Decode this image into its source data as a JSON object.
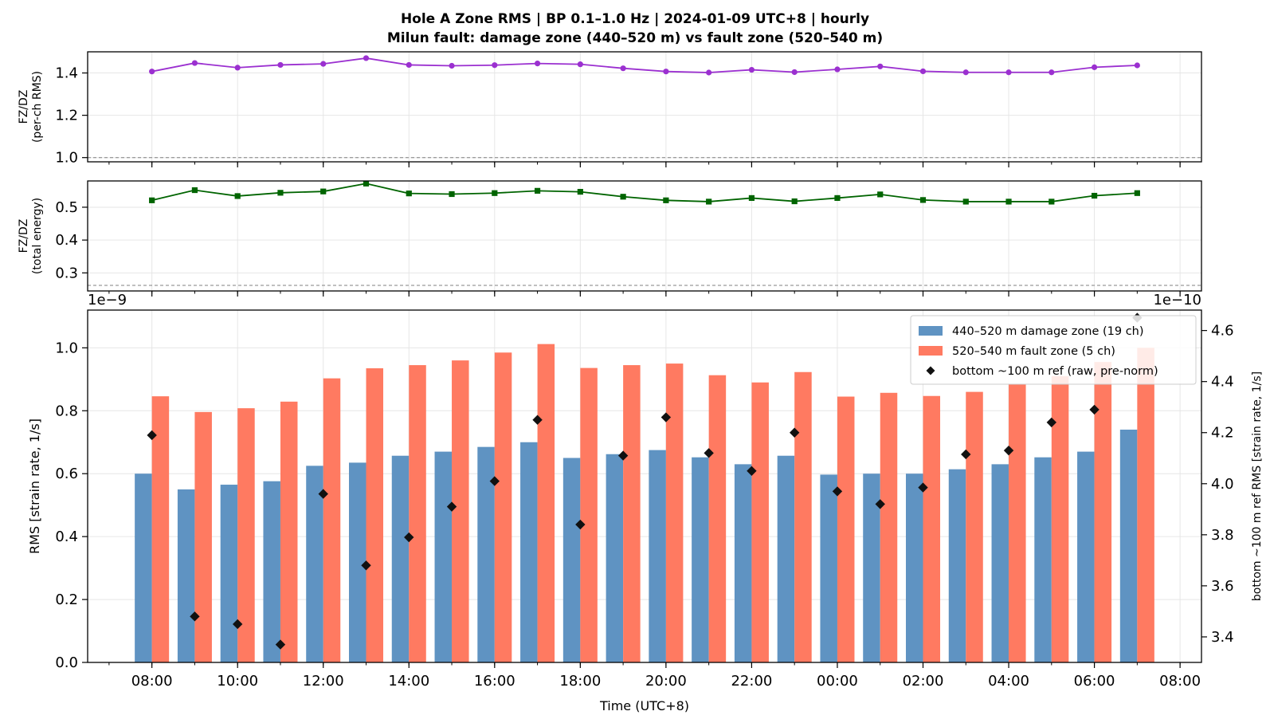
{
  "title_line1": "Hole A Zone RMS  |  BP 0.1–1.0 Hz  |  2024-01-09 UTC+8  |  hourly",
  "title_line2": "Milun fault: damage zone (440–520 m) vs fault zone (520–540 m)",
  "colors": {
    "ratio_rms": "#9b30d0",
    "ratio_energy": "#006400",
    "damage_zone": "#5f93c2",
    "fault_zone": "#ff7a61",
    "ref": "#111111",
    "baseline": "#808080"
  },
  "chart_data": [
    {
      "type": "line",
      "ylabel": "FZ/DZ\n(per-ch RMS)",
      "ylim": [
        0.98,
        1.5
      ],
      "yticks": [
        "1.0",
        "1.2",
        "1.4"
      ],
      "ytick_values": [
        1.0,
        1.2,
        1.4
      ],
      "baseline": 1.0,
      "grid": true,
      "marker": "circle",
      "x_hours": [
        0,
        1,
        2,
        3,
        4,
        5,
        6,
        7,
        8,
        9,
        10,
        11,
        12,
        13,
        14,
        15,
        16,
        17,
        18,
        19,
        20,
        21,
        22,
        23
      ],
      "values": [
        1.407,
        1.447,
        1.425,
        1.438,
        1.443,
        1.47,
        1.438,
        1.434,
        1.437,
        1.445,
        1.441,
        1.422,
        1.407,
        1.402,
        1.415,
        1.404,
        1.417,
        1.431,
        1.408,
        1.403,
        1.403,
        1.403,
        1.427,
        1.436
      ]
    },
    {
      "type": "line",
      "ylabel": "FZ/DZ\n(total energy)",
      "ylim": [
        0.245,
        0.58
      ],
      "yticks": [
        "0.3",
        "0.4",
        "0.5"
      ],
      "ytick_values": [
        0.3,
        0.4,
        0.5
      ],
      "baseline": 0.262,
      "grid": true,
      "marker": "square",
      "x_hours": [
        0,
        1,
        2,
        3,
        4,
        5,
        6,
        7,
        8,
        9,
        10,
        11,
        12,
        13,
        14,
        15,
        16,
        17,
        18,
        19,
        20,
        21,
        22,
        23
      ],
      "values": [
        0.521,
        0.552,
        0.534,
        0.544,
        0.548,
        0.572,
        0.542,
        0.54,
        0.543,
        0.55,
        0.547,
        0.532,
        0.521,
        0.517,
        0.528,
        0.518,
        0.528,
        0.539,
        0.522,
        0.517,
        0.517,
        0.517,
        0.535,
        0.543
      ]
    },
    {
      "type": "bar",
      "xlabel": "Time (UTC+8)",
      "ylabel": "RMS  [strain rate, 1/s]",
      "y2label": "bottom ~100 m ref RMS  [strain rate, 1/s]",
      "offset_left": "1e−9",
      "offset_right": "1e−10",
      "ylim": [
        0,
        1.12
      ],
      "yticks": [
        "0.0",
        "0.2",
        "0.4",
        "0.6",
        "0.8",
        "1.0"
      ],
      "ytick_values": [
        0.0,
        0.2,
        0.4,
        0.6,
        0.8,
        1.0
      ],
      "y2lim": [
        3.3,
        4.68
      ],
      "y2ticks": [
        "3.4",
        "3.6",
        "3.8",
        "4.0",
        "4.2",
        "4.4",
        "4.6"
      ],
      "y2tick_values": [
        3.4,
        3.6,
        3.8,
        4.0,
        4.2,
        4.4,
        4.6
      ],
      "xlim_hours": [
        -1.5,
        24.5
      ],
      "xticks": [
        "08:00",
        "10:00",
        "12:00",
        "14:00",
        "16:00",
        "18:00",
        "20:00",
        "22:00",
        "00:00",
        "02:00",
        "04:00",
        "06:00",
        "08:00"
      ],
      "xtick_hours": [
        0,
        2,
        4,
        6,
        8,
        10,
        12,
        14,
        16,
        18,
        20,
        22,
        24
      ],
      "grid": true,
      "legend_position": "top-right",
      "x_hours": [
        0,
        1,
        2,
        3,
        4,
        5,
        6,
        7,
        8,
        9,
        10,
        11,
        12,
        13,
        14,
        15,
        16,
        17,
        18,
        19,
        20,
        21,
        22,
        23
      ],
      "series": [
        {
          "name": "440–520 m  damage zone (19 ch)",
          "kind": "bar",
          "axis": "left",
          "values": [
            0.6,
            0.55,
            0.565,
            0.576,
            0.625,
            0.635,
            0.657,
            0.67,
            0.685,
            0.7,
            0.65,
            0.662,
            0.675,
            0.652,
            0.63,
            0.657,
            0.597,
            0.6,
            0.6,
            0.614,
            0.63,
            0.652,
            0.67,
            0.74
          ]
        },
        {
          "name": "520–540 m  fault zone (5 ch)",
          "kind": "bar",
          "axis": "left",
          "values": [
            0.846,
            0.796,
            0.808,
            0.829,
            0.903,
            0.935,
            0.945,
            0.96,
            0.985,
            1.012,
            0.936,
            0.945,
            0.95,
            0.913,
            0.89,
            0.923,
            0.845,
            0.857,
            0.847,
            0.86,
            0.885,
            0.91,
            0.955,
            1.0
          ]
        },
        {
          "name": "bottom ~100 m ref (raw, pre-norm)",
          "kind": "scatter",
          "axis": "right",
          "values": [
            4.19,
            3.48,
            3.45,
            3.37,
            3.96,
            3.68,
            3.79,
            3.91,
            4.01,
            4.25,
            3.84,
            4.11,
            4.26,
            4.12,
            4.05,
            4.2,
            3.97,
            3.92,
            3.985,
            4.115,
            4.13,
            4.24,
            4.29,
            4.65
          ]
        }
      ]
    }
  ]
}
